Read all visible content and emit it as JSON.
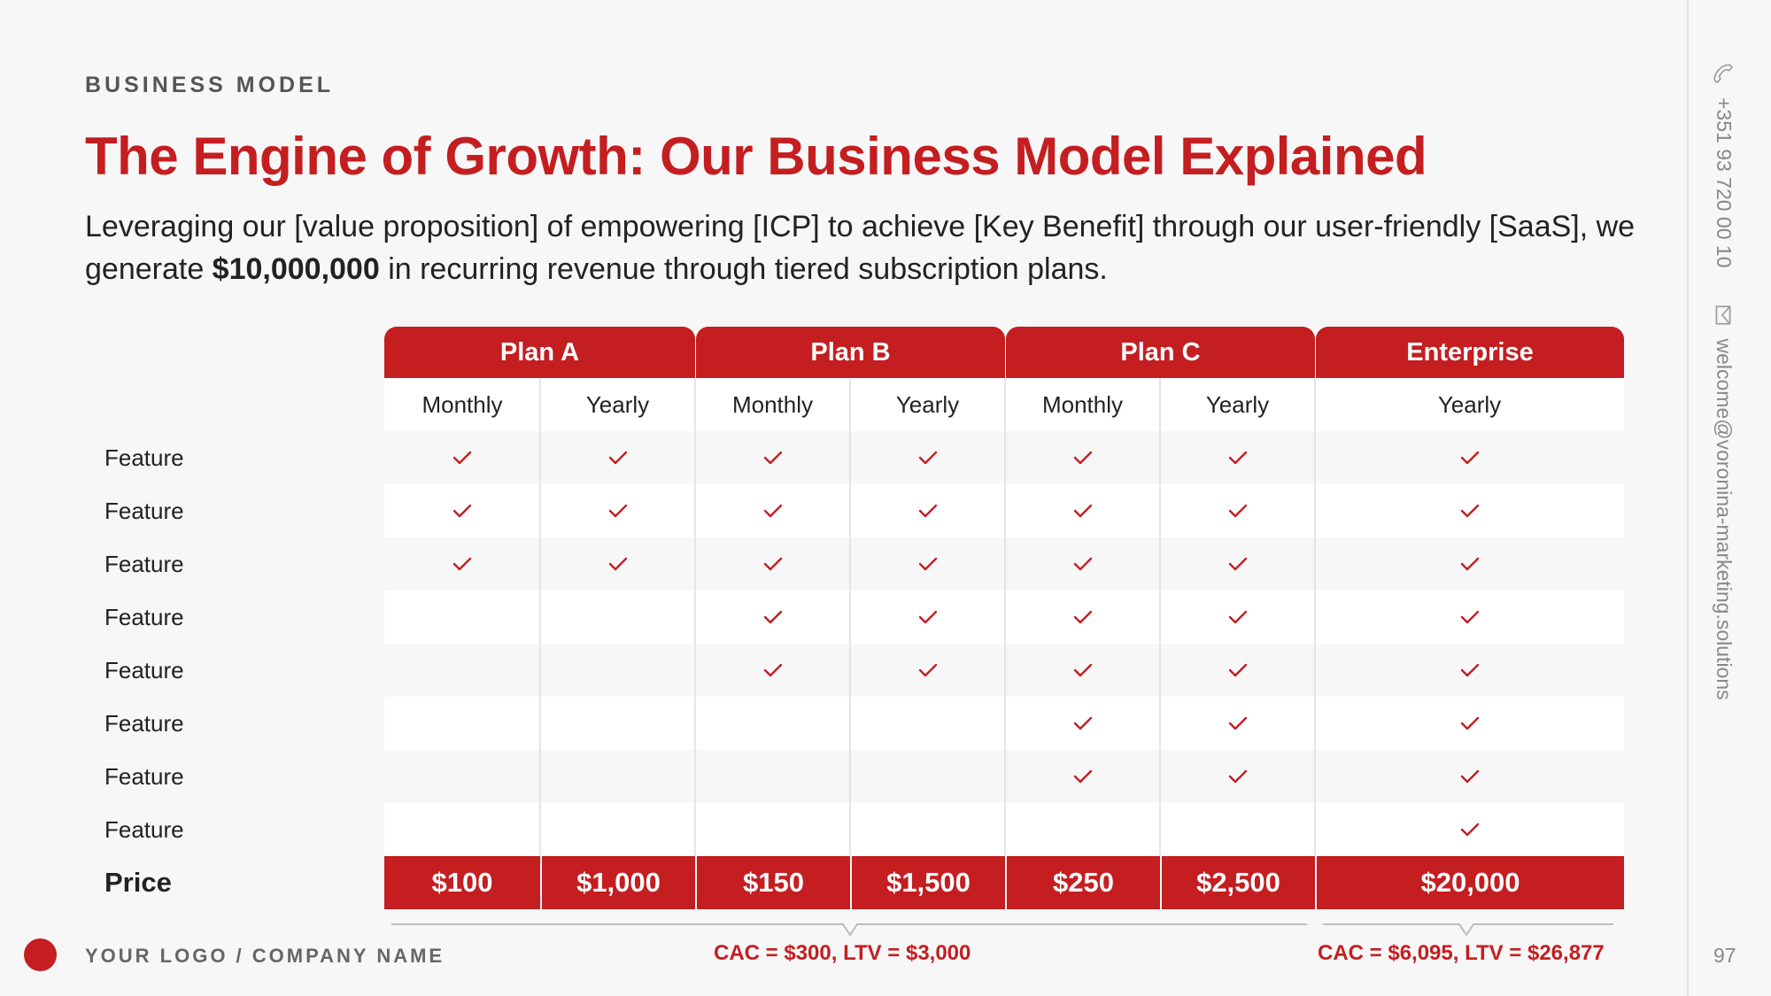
{
  "header": {
    "eyebrow": "BUSINESS MODEL",
    "title": "The Engine of Growth: Our Business Model Explained",
    "subtitle_part1": "Leveraging our [value proposition] of empowering [ICP] to achieve [Key Benefit] through our user-friendly [SaaS], we generate ",
    "subtitle_bold": "$10,000,000",
    "subtitle_part2": " in recurring revenue through tiered subscription plans."
  },
  "table": {
    "plans": [
      "Plan A",
      "Plan B",
      "Plan C",
      "Enterprise"
    ],
    "billing": [
      "Monthly",
      "Yearly",
      "Monthly",
      "Yearly",
      "Monthly",
      "Yearly",
      "Yearly"
    ],
    "features": [
      {
        "label": "Feature",
        "checks": [
          true,
          true,
          true,
          true,
          true,
          true,
          true
        ]
      },
      {
        "label": "Feature",
        "checks": [
          true,
          true,
          true,
          true,
          true,
          true,
          true
        ]
      },
      {
        "label": "Feature",
        "checks": [
          true,
          true,
          true,
          true,
          true,
          true,
          true
        ]
      },
      {
        "label": "Feature",
        "checks": [
          false,
          false,
          true,
          true,
          true,
          true,
          true
        ]
      },
      {
        "label": "Feature",
        "checks": [
          false,
          false,
          true,
          true,
          true,
          true,
          true
        ]
      },
      {
        "label": "Feature",
        "checks": [
          false,
          false,
          false,
          false,
          true,
          true,
          true
        ]
      },
      {
        "label": "Feature",
        "checks": [
          false,
          false,
          false,
          false,
          true,
          true,
          true
        ]
      },
      {
        "label": "Feature",
        "checks": [
          false,
          false,
          false,
          false,
          false,
          false,
          true
        ]
      }
    ],
    "price_label": "Price",
    "prices": [
      "$100",
      "$1,000",
      "$150",
      "$1,500",
      "$250",
      "$2,500",
      "$20,000"
    ]
  },
  "metrics": {
    "cac_ltv_plans": "CAC = $300, LTV = $3,000",
    "cac_ltv_enterprise": "CAC = $6,095, LTV = $26,877"
  },
  "footer": {
    "logo_text": "YOUR LOGO / COMPANY NAME",
    "page_number": "97"
  },
  "side": {
    "phone": "+351 93 720 00 10",
    "email": "welcome@voronina-marketing.solutions"
  },
  "colors": {
    "accent": "#c41e21",
    "background": "#f7f7f7",
    "text": "#222222"
  }
}
